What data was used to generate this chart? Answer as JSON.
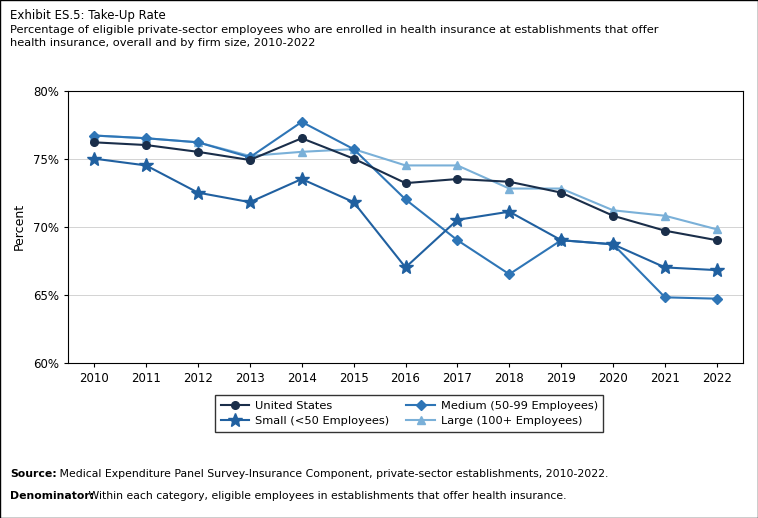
{
  "title_line1": "Exhibit ES.5: Take-Up Rate",
  "title_line2": "Percentage of eligible private-sector employees who are enrolled in health insurance at establishments that offer\nhealth insurance, overall and by firm size, 2010-2022",
  "years": [
    2010,
    2011,
    2012,
    2013,
    2014,
    2015,
    2016,
    2017,
    2018,
    2019,
    2020,
    2021,
    2022
  ],
  "united_states": [
    76.2,
    76.0,
    75.5,
    74.9,
    76.5,
    75.0,
    73.2,
    73.5,
    73.3,
    72.5,
    70.8,
    69.7,
    69.0
  ],
  "small": [
    75.0,
    74.5,
    72.5,
    71.8,
    73.5,
    71.8,
    67.0,
    70.5,
    71.1,
    69.0,
    68.7,
    67.0,
    66.8
  ],
  "medium": [
    76.7,
    76.5,
    76.2,
    75.1,
    77.7,
    75.7,
    72.0,
    69.0,
    66.5,
    69.0,
    68.7,
    64.8,
    64.7
  ],
  "large": [
    76.7,
    76.5,
    76.2,
    75.2,
    75.5,
    75.7,
    74.5,
    74.5,
    72.8,
    72.8,
    71.2,
    70.8,
    69.8
  ],
  "color_us": "#1a2e4a",
  "color_small": "#2060a0",
  "color_medium": "#2e75b6",
  "color_large": "#7ab0d8",
  "ylabel": "Percent",
  "ylim_min": 60,
  "ylim_max": 80,
  "yticks": [
    60,
    65,
    70,
    75,
    80
  ],
  "source_bold": "Source:",
  "source_rest": " Medical Expenditure Panel Survey-Insurance Component, private-sector establishments, 2010-2022.",
  "denom_bold": "Denominator:",
  "denom_rest": " Within each category, eligible employees in establishments that offer health insurance.",
  "legend_labels": [
    "United States",
    "Small (<50 Employees)",
    "Medium (50-99 Employees)",
    "Large (100+ Employees)"
  ]
}
